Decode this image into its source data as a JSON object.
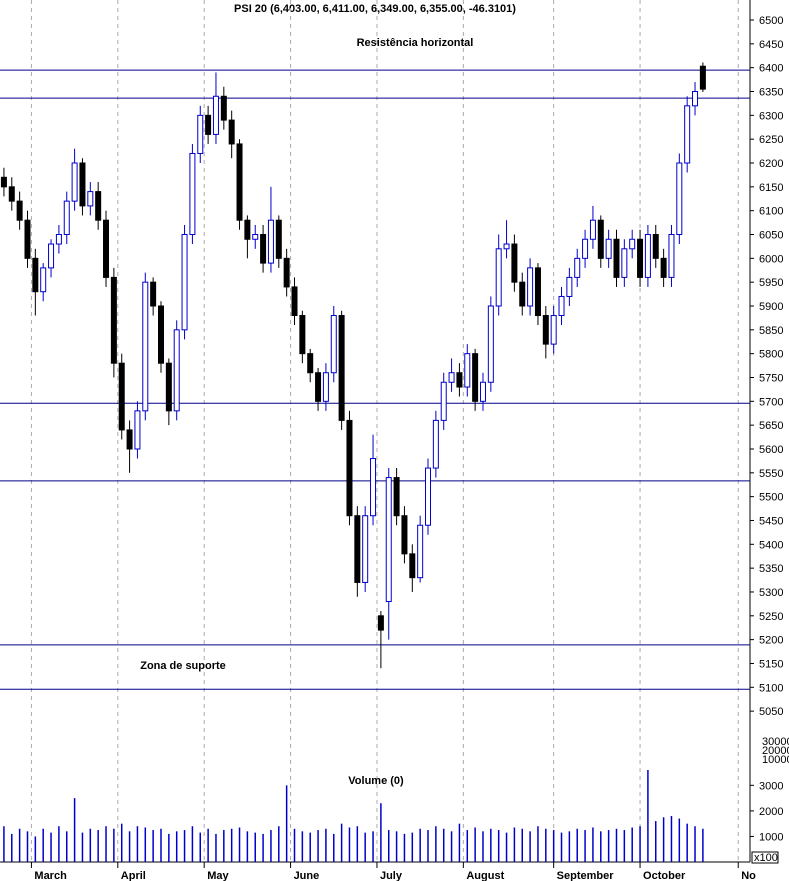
{
  "chart_data": {
    "type": "candlestick",
    "title": "PSI 20 (6,403.00, 6,411.00, 6,349.00, 6,355.00, -46.3101)",
    "annotations": [
      "Resistência horizontal",
      "Zona de suporte"
    ],
    "annotation_color": "#0000cc",
    "hlines": [
      6395,
      6336,
      5696,
      5533,
      5189,
      5096
    ],
    "hline_color": "#00008b",
    "up_color": "#0000cc",
    "down_color": "#000000",
    "xlim": [
      -1,
      190
    ],
    "xticks": [
      {
        "value": 7,
        "label": "March"
      },
      {
        "value": 29,
        "label": "April"
      },
      {
        "value": 51,
        "label": "May"
      },
      {
        "value": 73,
        "label": "June"
      },
      {
        "value": 95,
        "label": "July"
      },
      {
        "value": 117,
        "label": "August"
      },
      {
        "value": 140,
        "label": "September"
      },
      {
        "value": 162,
        "label": "October"
      },
      {
        "value": 187,
        "label": "No"
      }
    ],
    "ylim": [
      4916,
      6542
    ],
    "yticks": [
      5050,
      5100,
      5150,
      5200,
      5250,
      5300,
      5350,
      5400,
      5450,
      5500,
      5550,
      5600,
      5650,
      5700,
      5750,
      5800,
      5850,
      5900,
      5950,
      6000,
      6050,
      6100,
      6150,
      6200,
      6250,
      6300,
      6350,
      6400,
      6450,
      6500
    ],
    "x": [
      0,
      2,
      4,
      6,
      8,
      10,
      12,
      14,
      16,
      18,
      20,
      22,
      24,
      26,
      28,
      30,
      32,
      34,
      36,
      38,
      40,
      42,
      44,
      46,
      48,
      50,
      52,
      54,
      56,
      58,
      60,
      62,
      64,
      66,
      68,
      70,
      72,
      74,
      76,
      78,
      80,
      82,
      84,
      86,
      88,
      90,
      92,
      94,
      96,
      98,
      100,
      102,
      104,
      106,
      108,
      110,
      112,
      114,
      116,
      118,
      120,
      122,
      124,
      126,
      128,
      130,
      132,
      134,
      136,
      138,
      140,
      142,
      144,
      146,
      148,
      150,
      152,
      154,
      156,
      158,
      160,
      162,
      164,
      166,
      168,
      170,
      172,
      174,
      176,
      178
    ],
    "open": [
      6170,
      6150,
      6120,
      6080,
      6000,
      5930,
      5980,
      6030,
      6050,
      6120,
      6200,
      6110,
      6140,
      6080,
      5960,
      5780,
      5640,
      5600,
      5680,
      5950,
      5900,
      5780,
      5680,
      5850,
      6050,
      6220,
      6300,
      6260,
      6340,
      6290,
      6240,
      6080,
      6040,
      6050,
      5990,
      6080,
      6000,
      5940,
      5880,
      5800,
      5760,
      5700,
      5760,
      5880,
      5660,
      5460,
      5320,
      5460,
      5250,
      5280,
      5540,
      5460,
      5380,
      5330,
      5440,
      5560,
      5660,
      5740,
      5760,
      5730,
      5800,
      5700,
      5740,
      5900,
      6020,
      6030,
      5950,
      5900,
      5980,
      5880,
      5820,
      5880,
      5920,
      5960,
      6000,
      6040,
      6080,
      6000,
      6040,
      5960,
      6020,
      6040,
      5960,
      6050,
      6000,
      5960,
      6050,
      6200,
      6320,
      6403
    ],
    "high": [
      6190,
      6170,
      6140,
      6100,
      6020,
      5990,
      6040,
      6070,
      6140,
      6230,
      6210,
      6160,
      6160,
      6100,
      5980,
      5800,
      5660,
      5700,
      5970,
      5960,
      5910,
      5790,
      5870,
      6070,
      6240,
      6320,
      6320,
      6390,
      6360,
      6310,
      6250,
      6090,
      6070,
      6070,
      6150,
      6090,
      6020,
      5960,
      5890,
      5810,
      5770,
      5780,
      5900,
      5890,
      5680,
      5480,
      5480,
      5630,
      5260,
      5560,
      5560,
      5480,
      5400,
      5460,
      5580,
      5680,
      5760,
      5790,
      5780,
      5820,
      5810,
      5760,
      5920,
      6050,
      6080,
      6050,
      5970,
      6000,
      5990,
      5900,
      5900,
      5940,
      5980,
      6020,
      6060,
      6110,
      6090,
      6060,
      6060,
      6040,
      6060,
      6060,
      6070,
      6070,
      6020,
      6070,
      6220,
      6340,
      6370,
      6411
    ],
    "low": [
      6130,
      6100,
      6060,
      5980,
      5880,
      5910,
      5960,
      6010,
      6030,
      6100,
      6090,
      6090,
      6060,
      5940,
      5750,
      5620,
      5550,
      5580,
      5660,
      5880,
      5760,
      5650,
      5660,
      5830,
      6030,
      6200,
      6240,
      6240,
      6270,
      6210,
      6060,
      6000,
      6020,
      5970,
      5970,
      5980,
      5920,
      5860,
      5780,
      5740,
      5680,
      5680,
      5740,
      5640,
      5440,
      5290,
      5300,
      5440,
      5140,
      5200,
      5440,
      5360,
      5300,
      5320,
      5420,
      5540,
      5640,
      5720,
      5710,
      5710,
      5680,
      5680,
      5720,
      5880,
      6000,
      5930,
      5880,
      5880,
      5860,
      5790,
      5800,
      5860,
      5900,
      5940,
      5980,
      6020,
      5980,
      5980,
      5940,
      5940,
      6000,
      5940,
      5940,
      5980,
      5940,
      5940,
      6030,
      6180,
      6300,
      6349
    ],
    "close": [
      6150,
      6120,
      6080,
      6000,
      5930,
      5980,
      6030,
      6050,
      6120,
      6200,
      6110,
      6140,
      6080,
      5960,
      5780,
      5640,
      5600,
      5680,
      5950,
      5900,
      5780,
      5680,
      5850,
      6050,
      6220,
      6300,
      6260,
      6340,
      6290,
      6240,
      6080,
      6040,
      6050,
      5990,
      6080,
      6000,
      5940,
      5880,
      5800,
      5760,
      5700,
      5760,
      5880,
      5660,
      5460,
      5320,
      5460,
      5580,
      5220,
      5540,
      5460,
      5380,
      5330,
      5440,
      5560,
      5660,
      5740,
      5760,
      5730,
      5800,
      5700,
      5740,
      5900,
      6020,
      6030,
      5950,
      5900,
      5980,
      5880,
      5820,
      5880,
      5920,
      5960,
      6000,
      6040,
      6080,
      6000,
      6040,
      5960,
      6020,
      6040,
      5960,
      6050,
      6000,
      5960,
      6050,
      6200,
      6320,
      6350,
      6355
    ],
    "volume_title": "Volume (0)",
    "volume_unit": "x100",
    "volume_upper_labels": [
      "30000",
      "20000",
      "10000"
    ],
    "volume_color": "#0000cc",
    "volume_ylim": [
      0,
      3600
    ],
    "volume_yticks": [
      1000,
      2000,
      3000
    ],
    "volume": [
      1400,
      1100,
      1300,
      1200,
      1000,
      1300,
      1150,
      1400,
      1200,
      2500,
      1150,
      1300,
      1250,
      1400,
      1300,
      1500,
      1200,
      1400,
      1350,
      1250,
      1300,
      1100,
      1200,
      1250,
      1400,
      1150,
      1300,
      1100,
      1250,
      1300,
      1350,
      1200,
      1150,
      1100,
      1250,
      1400,
      3000,
      1300,
      1200,
      1150,
      1250,
      1300,
      1100,
      1500,
      1350,
      1400,
      1150,
      1200,
      2300,
      1250,
      1200,
      1100,
      1150,
      1300,
      1250,
      1400,
      1300,
      1200,
      1500,
      1250,
      1350,
      1200,
      1300,
      1250,
      1150,
      1350,
      1300,
      1200,
      1400,
      1300,
      1250,
      1150,
      1200,
      1300,
      1250,
      1350,
      1200,
      1250,
      1300,
      1250,
      1350,
      1400,
      3600,
      1600,
      1750,
      1800,
      1700,
      1500,
      1400,
      1300
    ]
  }
}
